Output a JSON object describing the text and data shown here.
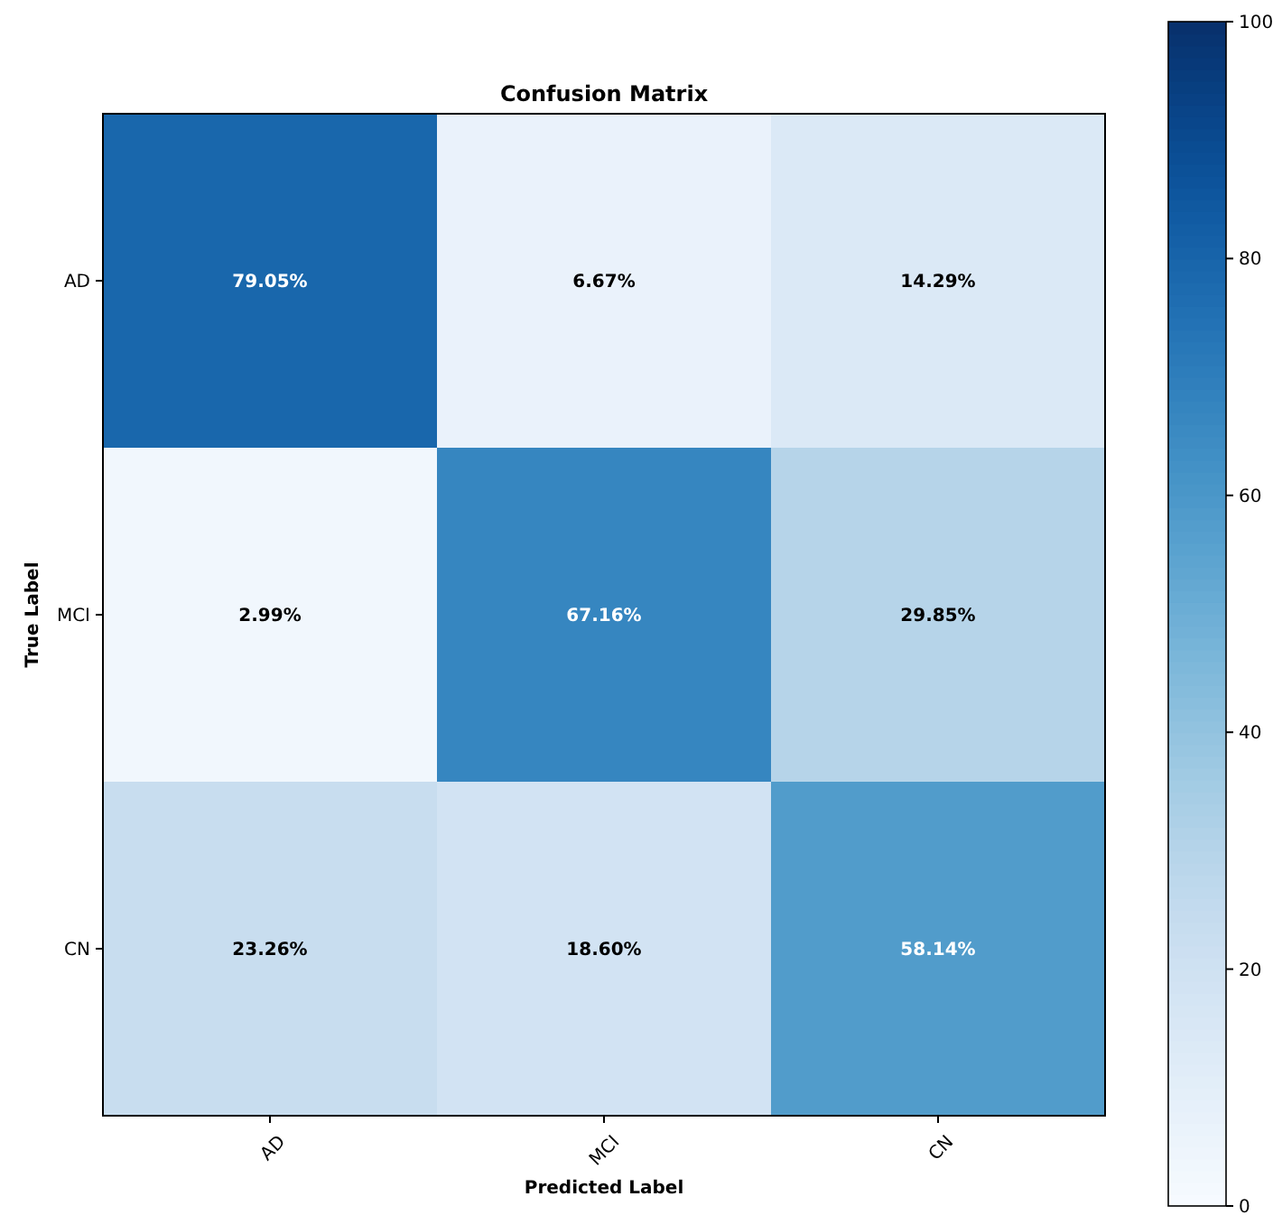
{
  "chart_data": {
    "type": "heatmap",
    "title": "Confusion Matrix",
    "xlabel": "Predicted Label",
    "ylabel": "True Label",
    "categories": [
      "AD",
      "MCI",
      "CN"
    ],
    "y_categories": [
      "AD",
      "MCI",
      "CN"
    ],
    "cells": [
      [
        79.05,
        6.67,
        14.29
      ],
      [
        2.99,
        67.16,
        29.85
      ],
      [
        23.26,
        18.6,
        58.14
      ]
    ],
    "cell_labels": [
      [
        "79.05%",
        "6.67%",
        "14.29%"
      ],
      [
        "2.99%",
        "67.16%",
        "29.85%"
      ],
      [
        "23.26%",
        "18.60%",
        "58.14%"
      ]
    ],
    "clim": [
      0,
      100
    ],
    "cticks": [
      0,
      20,
      40,
      60,
      80,
      100
    ]
  }
}
